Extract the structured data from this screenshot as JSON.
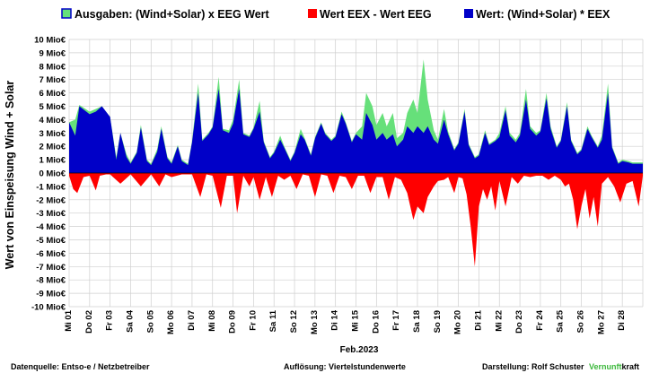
{
  "chart_data": {
    "type": "area",
    "title": "",
    "xlabel": "Feb.2023",
    "ylabel": "Wert von Einspeisung Wind + Solar",
    "ylim": [
      -10,
      10
    ],
    "y_ticks": [
      10,
      9,
      8,
      7,
      6,
      5,
      4,
      3,
      2,
      1,
      0,
      -1,
      -2,
      -3,
      -4,
      -5,
      -6,
      -7,
      -8,
      -9,
      -10
    ],
    "y_tick_labels": [
      "10 Mio€",
      "9 Mio€",
      "8 Mio€",
      "7 Mio€",
      "6 Mio€",
      "5 Mio€",
      "4 Mio€",
      "3 Mio€",
      "2 Mio€",
      "1 Mio€",
      "0 Mio€",
      "-1 Mio€",
      "-2 Mio€",
      "-3 Mio€",
      "-4 Mio€",
      "-5 Mio€",
      "-6 Mio€",
      "-7 Mio€",
      "-8 Mio€",
      "-9 Mio€",
      "-10 Mio€"
    ],
    "x_tick_labels": [
      "Mi 01",
      "Do 02",
      "Fr 03",
      "Sa 04",
      "So 05",
      "Mo 06",
      "Di 07",
      "Mi 08",
      "Do 09",
      "Fr 10",
      "Sa 11",
      "So 12",
      "Mo 13",
      "Di 14",
      "Mi 15",
      "Do 16",
      "Fr 17",
      "Sa 18",
      "So 19",
      "Mo 20",
      "Di 21",
      "Mi 22",
      "Do 23",
      "Fr 24",
      "Sa 25",
      "So 26",
      "Mo 27",
      "Di 28"
    ],
    "grid": true,
    "legend_position": "top",
    "series": [
      {
        "name": "Ausgaben: (Wind+Solar) x EEG Wert",
        "color": "#66e07a",
        "x": [
          0,
          0.3,
          0.5,
          1.0,
          1.3,
          1.6,
          2.0,
          2.3,
          2.5,
          2.8,
          3.0,
          3.3,
          3.5,
          3.8,
          4.0,
          4.3,
          4.5,
          4.8,
          5.0,
          5.3,
          5.5,
          5.8,
          6.0,
          6.3,
          6.5,
          6.8,
          7.0,
          7.3,
          7.5,
          7.8,
          8.0,
          8.3,
          8.5,
          8.8,
          9.0,
          9.3,
          9.5,
          9.8,
          10.0,
          10.3,
          10.5,
          10.8,
          11.0,
          11.3,
          11.5,
          11.8,
          12.0,
          12.3,
          12.5,
          12.8,
          13.0,
          13.3,
          13.5,
          13.8,
          14.0,
          14.3,
          14.5,
          14.8,
          15.0,
          15.3,
          15.5,
          15.8,
          16.0,
          16.3,
          16.5,
          16.8,
          17.0,
          17.3,
          17.5,
          17.8,
          18.0,
          18.3,
          18.5,
          18.8,
          19.0,
          19.3,
          19.5,
          19.8,
          20.0,
          20.3,
          20.5,
          20.8,
          21.0,
          21.3,
          21.5,
          21.8,
          22.0,
          22.3,
          22.5,
          22.8,
          23.0,
          23.3,
          23.5,
          23.8,
          24.0,
          24.3,
          24.5,
          24.8,
          25.0,
          25.3,
          25.5,
          25.8,
          26.0,
          26.3,
          26.5,
          26.8,
          27.0,
          27.3,
          27.5,
          27.8,
          28.0
        ],
        "values": [
          3.8,
          4.0,
          5.1,
          4.6,
          4.8,
          5.0,
          4.2,
          1.2,
          3.0,
          1.4,
          0.8,
          1.6,
          3.6,
          1.0,
          0.7,
          1.8,
          3.5,
          1.2,
          0.8,
          2.1,
          1.0,
          0.7,
          2.4,
          6.7,
          2.5,
          3.0,
          3.5,
          7.2,
          3.3,
          3.2,
          4.0,
          7.0,
          3.0,
          2.8,
          3.4,
          5.4,
          2.4,
          1.2,
          1.6,
          2.8,
          2.0,
          1.0,
          1.6,
          3.3,
          2.6,
          1.4,
          2.7,
          3.8,
          3.0,
          2.5,
          2.8,
          4.6,
          3.8,
          2.4,
          3.0,
          3.5,
          6.0,
          5.0,
          3.6,
          4.5,
          3.5,
          4.5,
          2.6,
          3.0,
          4.5,
          5.5,
          4.5,
          8.5,
          5.5,
          3.2,
          2.5,
          4.8,
          3.1,
          1.8,
          2.3,
          4.8,
          2.2,
          1.2,
          1.4,
          3.2,
          2.2,
          2.5,
          3.0,
          5.0,
          3.0,
          2.5,
          3.0,
          6.3,
          3.5,
          3.0,
          3.2,
          6.0,
          3.5,
          2.0,
          2.5,
          5.3,
          2.5,
          1.5,
          1.8,
          3.5,
          2.8,
          2.0,
          2.8,
          6.7,
          2.0,
          0.8,
          1.0,
          0.9,
          0.8,
          0.8,
          0.8
        ]
      },
      {
        "name": "Wert EEX - Wert EEG",
        "color": "#ff0000",
        "x": [
          0,
          0.2,
          0.4,
          0.7,
          1.0,
          1.3,
          1.5,
          1.8,
          2.0,
          2.5,
          3.0,
          3.5,
          4.0,
          4.4,
          4.7,
          5.0,
          5.5,
          6.0,
          6.4,
          6.7,
          7.0,
          7.4,
          7.7,
          8.0,
          8.2,
          8.5,
          8.8,
          9.0,
          9.3,
          9.6,
          9.9,
          10.2,
          10.5,
          10.8,
          11.1,
          11.4,
          11.7,
          12.0,
          12.3,
          12.6,
          12.9,
          13.2,
          13.5,
          13.8,
          14.1,
          14.4,
          14.7,
          15.0,
          15.3,
          15.6,
          15.9,
          16.2,
          16.5,
          16.8,
          17.0,
          17.3,
          17.5,
          17.8,
          18.0,
          18.3,
          18.5,
          18.8,
          19.0,
          19.2,
          19.4,
          19.6,
          19.8,
          20.0,
          20.2,
          20.4,
          20.6,
          20.8,
          21.0,
          21.3,
          21.6,
          21.9,
          22.2,
          22.5,
          22.8,
          23.1,
          23.4,
          23.7,
          24.0,
          24.2,
          24.4,
          24.6,
          24.8,
          25.0,
          25.2,
          25.4,
          25.6,
          25.8,
          26.0,
          26.3,
          26.6,
          26.9,
          27.2,
          27.5,
          27.8,
          28.0
        ],
        "values": [
          -0.2,
          -1.2,
          -1.5,
          -0.3,
          -0.2,
          -1.3,
          -0.2,
          -0.1,
          -0.1,
          -0.8,
          -0.1,
          -1.0,
          -0.1,
          -1.0,
          -0.1,
          -0.3,
          -0.1,
          -0.1,
          -1.8,
          -0.1,
          -0.2,
          -2.6,
          -0.2,
          -0.2,
          -3.0,
          -0.2,
          -1.0,
          -0.3,
          -2.0,
          -0.3,
          -1.8,
          -0.2,
          -0.5,
          -0.2,
          -1.2,
          -0.1,
          -0.2,
          -1.8,
          -0.1,
          -0.2,
          -1.5,
          -0.2,
          -0.3,
          -1.2,
          -0.2,
          -0.2,
          -1.5,
          -0.3,
          -0.3,
          -2.0,
          -0.3,
          -0.5,
          -1.5,
          -3.5,
          -2.5,
          -3.0,
          -1.8,
          -1.0,
          -0.6,
          -0.5,
          -0.3,
          -1.5,
          -0.3,
          -0.4,
          -1.6,
          -4.0,
          -7.0,
          -2.5,
          -1.2,
          -2.0,
          -1.0,
          -2.8,
          -0.6,
          -2.5,
          -0.3,
          -0.8,
          -0.2,
          -0.3,
          -0.2,
          -0.2,
          -0.5,
          -0.2,
          -0.5,
          -1.0,
          -0.8,
          -2.0,
          -4.2,
          -2.5,
          -1.2,
          -3.4,
          -1.8,
          -4.0,
          -0.8,
          -0.3,
          -1.0,
          -2.2,
          -0.8,
          -0.6,
          -2.5,
          -0.2
        ]
      },
      {
        "name": "Wert: (Wind+Solar) * EEX",
        "color": "#0000c8",
        "x": [
          0,
          0.3,
          0.5,
          1.0,
          1.3,
          1.6,
          2.0,
          2.3,
          2.5,
          2.8,
          3.0,
          3.3,
          3.5,
          3.8,
          4.0,
          4.3,
          4.5,
          4.8,
          5.0,
          5.3,
          5.5,
          5.8,
          6.0,
          6.3,
          6.5,
          6.8,
          7.0,
          7.3,
          7.5,
          7.8,
          8.0,
          8.3,
          8.5,
          8.8,
          9.0,
          9.3,
          9.5,
          9.8,
          10.0,
          10.3,
          10.5,
          10.8,
          11.0,
          11.3,
          11.5,
          11.8,
          12.0,
          12.3,
          12.5,
          12.8,
          13.0,
          13.3,
          13.5,
          13.8,
          14.0,
          14.3,
          14.5,
          14.8,
          15.0,
          15.3,
          15.5,
          15.8,
          16.0,
          16.3,
          16.5,
          16.8,
          17.0,
          17.3,
          17.5,
          17.8,
          18.0,
          18.3,
          18.5,
          18.8,
          19.0,
          19.3,
          19.5,
          19.8,
          20.0,
          20.3,
          20.5,
          20.8,
          21.0,
          21.3,
          21.5,
          21.8,
          22.0,
          22.3,
          22.5,
          22.8,
          23.0,
          23.3,
          23.5,
          23.8,
          24.0,
          24.3,
          24.5,
          24.8,
          25.0,
          25.3,
          25.5,
          25.8,
          26.0,
          26.3,
          26.5,
          26.8,
          27.0,
          27.3,
          27.5,
          27.8,
          28.0
        ],
        "values": [
          3.8,
          2.8,
          5.0,
          4.4,
          4.6,
          5.0,
          4.2,
          1.0,
          3.0,
          1.2,
          0.7,
          1.5,
          3.4,
          0.9,
          0.6,
          1.6,
          3.3,
          1.1,
          0.7,
          2.0,
          0.9,
          0.6,
          2.3,
          6.0,
          2.4,
          2.9,
          3.4,
          6.3,
          3.2,
          3.0,
          3.7,
          6.3,
          2.9,
          2.7,
          3.3,
          4.6,
          2.3,
          1.1,
          1.5,
          2.5,
          1.9,
          0.9,
          1.5,
          2.9,
          2.5,
          1.3,
          2.6,
          3.7,
          2.9,
          2.4,
          2.7,
          4.4,
          3.7,
          2.3,
          2.9,
          2.5,
          4.5,
          3.6,
          2.5,
          3.0,
          2.5,
          2.9,
          2.0,
          2.5,
          3.5,
          3.0,
          3.5,
          3.0,
          3.5,
          2.5,
          2.2,
          4.0,
          2.9,
          1.7,
          2.2,
          4.6,
          2.1,
          1.1,
          1.3,
          3.0,
          2.1,
          2.4,
          2.7,
          4.7,
          2.8,
          2.3,
          2.8,
          5.5,
          3.3,
          2.8,
          3.1,
          5.6,
          3.3,
          1.9,
          2.4,
          5.0,
          2.4,
          1.4,
          1.7,
          3.3,
          2.7,
          1.9,
          2.5,
          6.0,
          1.9,
          0.7,
          0.9,
          0.8,
          0.7,
          0.7,
          0.7
        ]
      }
    ]
  },
  "legend": {
    "items": [
      {
        "label": "Ausgaben: (Wind+Solar) x EEG Wert",
        "color": "#66e07a"
      },
      {
        "label": "Wert EEX - Wert EEG",
        "color": "#ff0000"
      },
      {
        "label": "Wert: (Wind+Solar) * EEX",
        "color": "#0000c8"
      }
    ]
  },
  "footer": {
    "source": "Datenquelle:  Entso-e  / Netzbetreiber",
    "resolution": "Auflösung: Viertelstundenwerte",
    "author": "Darstellung:  Rolf Schuster",
    "brand_part1": "Vernunft",
    "brand_part2": "kraft",
    "brand_color": "#3cb83c"
  }
}
